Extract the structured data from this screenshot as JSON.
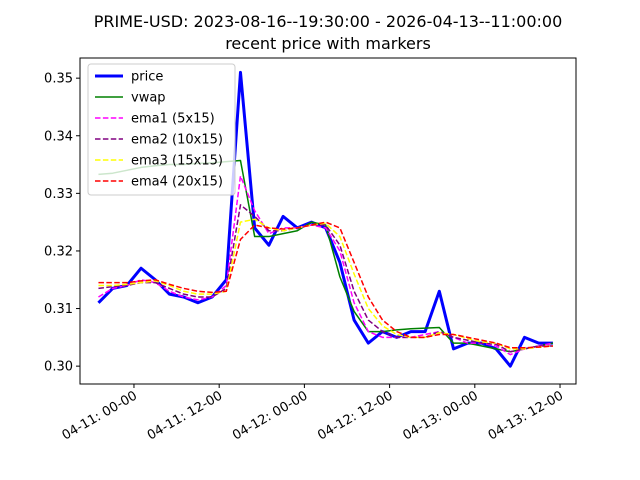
{
  "chart_data": {
    "type": "line",
    "title": "PRIME-USD: 2023-08-16--19:30:00 - 2026-04-13--11:00:00",
    "subtitle": "recent price with markers",
    "x": [
      "04-10 19:00",
      "04-10 21:00",
      "04-10 23:00",
      "04-11 01:00",
      "04-11 03:00",
      "04-11 05:00",
      "04-11 07:00",
      "04-11 09:00",
      "04-11 11:00",
      "04-11 13:00",
      "04-11 15:00",
      "04-11 17:00",
      "04-11 19:00",
      "04-11 21:00",
      "04-11 23:00",
      "04-12 01:00",
      "04-12 03:00",
      "04-12 05:00",
      "04-12 07:00",
      "04-12 09:00",
      "04-12 11:00",
      "04-12 13:00",
      "04-12 15:00",
      "04-12 17:00",
      "04-12 19:00",
      "04-12 21:00",
      "04-12 23:00",
      "04-13 01:00",
      "04-13 03:00",
      "04-13 05:00",
      "04-13 07:00",
      "04-13 09:00",
      "04-13 11:00"
    ],
    "series": [
      {
        "name": "price",
        "color": "#0000ff",
        "linestyle": "solid",
        "linewidth": 3,
        "values": [
          0.311,
          0.3135,
          0.314,
          0.317,
          0.315,
          0.3125,
          0.312,
          0.311,
          0.312,
          0.315,
          0.351,
          0.324,
          0.321,
          0.326,
          0.324,
          0.325,
          0.324,
          0.318,
          0.308,
          0.304,
          0.306,
          0.305,
          0.306,
          0.306,
          0.313,
          0.303,
          0.304,
          0.304,
          0.303,
          0.3,
          0.305,
          0.304,
          0.304
        ]
      },
      {
        "name": "vwap",
        "color": "#008000",
        "linestyle": "solid",
        "linewidth": 1.5,
        "values": [
          0.3333,
          0.3335,
          0.334,
          0.3345,
          0.3348,
          0.335,
          0.335,
          0.3352,
          0.3353,
          0.3355,
          0.3357,
          0.3225,
          0.3225,
          0.323,
          0.3235,
          0.325,
          0.3245,
          0.3155,
          0.3095,
          0.306,
          0.306,
          0.3063,
          0.3065,
          0.3066,
          0.3067,
          0.304,
          0.304,
          0.3035,
          0.303,
          0.3025,
          0.303,
          0.3035,
          0.304
        ]
      },
      {
        "name": "ema1 (5x15)",
        "color": "#ff00ff",
        "linestyle": "dashed",
        "linewidth": 1.5,
        "values": [
          0.312,
          0.3135,
          0.314,
          0.315,
          0.3145,
          0.313,
          0.312,
          0.3115,
          0.312,
          0.314,
          0.333,
          0.327,
          0.323,
          0.324,
          0.324,
          0.3245,
          0.324,
          0.32,
          0.311,
          0.306,
          0.305,
          0.305,
          0.305,
          0.3055,
          0.306,
          0.305,
          0.304,
          0.304,
          0.3035,
          0.302,
          0.303,
          0.3035,
          0.304
        ]
      },
      {
        "name": "ema2 (10x15)",
        "color": "#800080",
        "linestyle": "dashed",
        "linewidth": 1.5,
        "values": [
          0.3135,
          0.3138,
          0.314,
          0.3145,
          0.3145,
          0.3135,
          0.3125,
          0.312,
          0.312,
          0.3135,
          0.328,
          0.326,
          0.3235,
          0.3235,
          0.324,
          0.3245,
          0.3245,
          0.321,
          0.313,
          0.308,
          0.306,
          0.305,
          0.305,
          0.305,
          0.306,
          0.305,
          0.3045,
          0.304,
          0.3038,
          0.3025,
          0.303,
          0.3035,
          0.3035
        ]
      },
      {
        "name": "ema3 (15x15)",
        "color": "#ffff00",
        "linestyle": "dashed",
        "linewidth": 1.5,
        "values": [
          0.314,
          0.314,
          0.3142,
          0.3145,
          0.3148,
          0.314,
          0.313,
          0.3125,
          0.3125,
          0.313,
          0.325,
          0.3255,
          0.324,
          0.3235,
          0.324,
          0.3245,
          0.3248,
          0.3225,
          0.316,
          0.31,
          0.307,
          0.3055,
          0.305,
          0.305,
          0.3058,
          0.3055,
          0.3048,
          0.3042,
          0.304,
          0.303,
          0.303,
          0.3033,
          0.3035
        ]
      },
      {
        "name": "ema4 (20x15)",
        "color": "#ff0000",
        "linestyle": "dashed",
        "linewidth": 1.5,
        "values": [
          0.3145,
          0.3145,
          0.3145,
          0.3148,
          0.315,
          0.3142,
          0.3135,
          0.313,
          0.3128,
          0.313,
          0.322,
          0.3245,
          0.324,
          0.3238,
          0.324,
          0.3245,
          0.325,
          0.324,
          0.318,
          0.312,
          0.308,
          0.306,
          0.305,
          0.305,
          0.3055,
          0.3055,
          0.305,
          0.3045,
          0.304,
          0.3032,
          0.3032,
          0.3033,
          0.3035
        ]
      }
    ],
    "xlim": [
      "04-10 16:24",
      "04-13 14:15"
    ],
    "xticks": [
      {
        "value": "04-11 00:00",
        "label": "04-11: 00-00"
      },
      {
        "value": "04-11 12:00",
        "label": "04-11: 12-00"
      },
      {
        "value": "04-12 00:00",
        "label": "04-12: 00-00"
      },
      {
        "value": "04-12 12:00",
        "label": "04-12: 12-00"
      },
      {
        "value": "04-13 00:00",
        "label": "04-13: 00-00"
      },
      {
        "value": "04-13 12:00",
        "label": "04-13: 12-00"
      }
    ],
    "ylim": [
      0.2969,
      0.3535
    ],
    "yticks": [
      {
        "value": 0.3,
        "label": "0.30"
      },
      0.31,
      0.32,
      0.33,
      0.34,
      0.35
    ],
    "grid": false,
    "legend": "upper left"
  }
}
